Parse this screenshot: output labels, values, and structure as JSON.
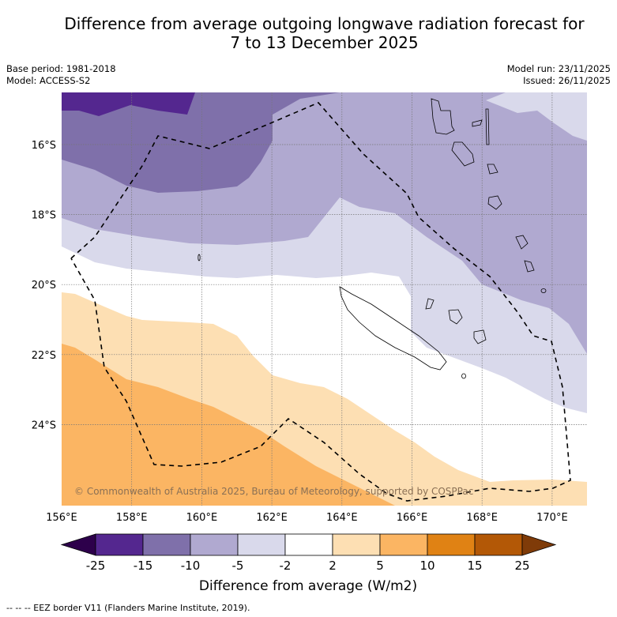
{
  "title": {
    "line1": "Difference from average outgoing longwave radiation forecast for",
    "line2": "7 to 13 December 2025"
  },
  "meta": {
    "base_period": "Base period: 1981-2018",
    "model": "Model: ACCESS-S2",
    "model_run": "Model run: 23/11/2025",
    "issued": "Issued: 26/11/2025"
  },
  "map": {
    "lon_range": [
      156,
      171
    ],
    "lat_range": [
      -26.3,
      -14.5
    ],
    "lon_ticks": [
      "156°E",
      "158°E",
      "160°E",
      "162°E",
      "164°E",
      "166°E",
      "168°E",
      "170°E"
    ],
    "lat_ticks": [
      "16°S",
      "18°S",
      "20°S",
      "22°S",
      "24°S"
    ],
    "copyright": "© Commonwealth of Australia 2025, Bureau of Meteorology, supported by COSPPac",
    "eez_border_style": "dashed"
  },
  "colorbar": {
    "title": "Difference from average (W/m2)",
    "boundaries": [
      "-25",
      "-15",
      "-10",
      "-5",
      "-2",
      "2",
      "5",
      "10",
      "15",
      "25"
    ],
    "colors": [
      "#54278f",
      "#7f70aa",
      "#b0a9d0",
      "#d9d9eb",
      "#ffffff",
      "#fddfb3",
      "#fbb563",
      "#e08214",
      "#b35806"
    ],
    "under_color": "#2d004b",
    "over_color": "#7f3b08"
  },
  "footer": "--  --  -- EEZ border V11 (Flanders Marine Institute, 2019)."
}
